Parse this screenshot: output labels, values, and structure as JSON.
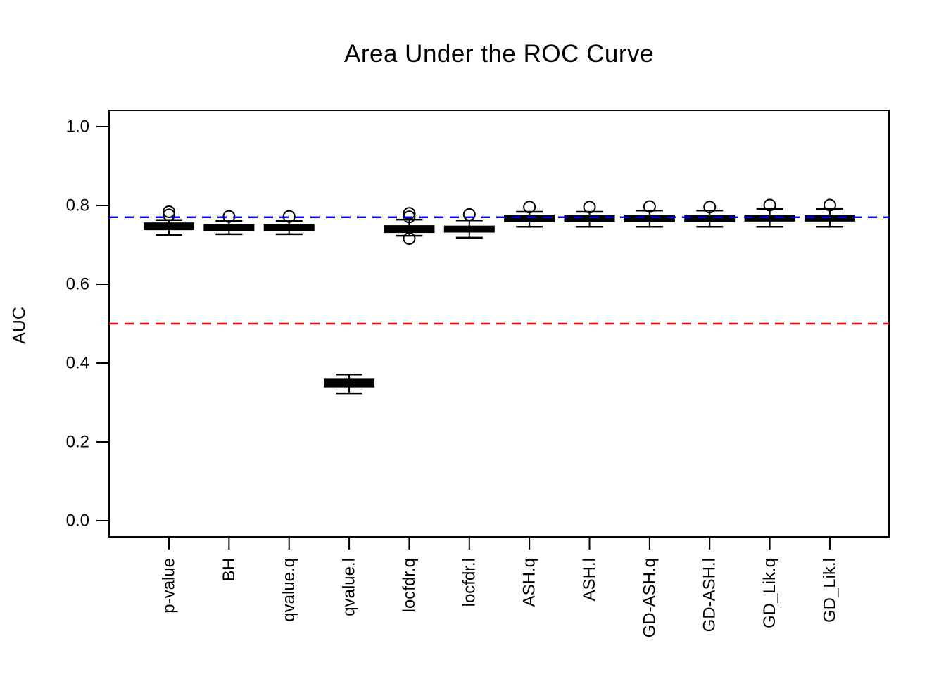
{
  "figure": {
    "background": "#ffffff",
    "axis_color": "#000000",
    "box_color": "#000000"
  },
  "chart_data": {
    "type": "boxplot",
    "title": "Area Under the ROC Curve",
    "xlabel": "",
    "ylabel": "AUC",
    "ylim": [
      -0.04,
      1.04
    ],
    "grid": false,
    "legend": null,
    "yticks": [
      {
        "value": 0.0,
        "label": "0.0"
      },
      {
        "value": 0.2,
        "label": "0.2"
      },
      {
        "value": 0.4,
        "label": "0.4"
      },
      {
        "value": 0.6,
        "label": "0.6"
      },
      {
        "value": 0.8,
        "label": "0.8"
      },
      {
        "value": 1.0,
        "label": "1.0"
      }
    ],
    "categories": [
      "p-value",
      "BH",
      "qvalue.q",
      "qvalue.l",
      "locfdr.q",
      "locfdr.l",
      "ASH.q",
      "ASH.l",
      "GD-ASH.q",
      "GD-ASH.l",
      "GD_Lik.q",
      "GD_Lik.l"
    ],
    "boxes": [
      {
        "category": "p-value",
        "whisker_low": 0.725,
        "q1": 0.739,
        "median": 0.747,
        "q3": 0.755,
        "whisker_high": 0.763,
        "outliers": [
          0.784,
          0.776
        ]
      },
      {
        "category": "BH",
        "whisker_low": 0.727,
        "q1": 0.737,
        "median": 0.744,
        "q3": 0.751,
        "whisker_high": 0.761,
        "outliers": [
          0.772
        ]
      },
      {
        "category": "qvalue.q",
        "whisker_low": 0.727,
        "q1": 0.737,
        "median": 0.744,
        "q3": 0.751,
        "whisker_high": 0.761,
        "outliers": [
          0.772
        ]
      },
      {
        "category": "qvalue.l",
        "whisker_low": 0.323,
        "q1": 0.34,
        "median": 0.35,
        "q3": 0.36,
        "whisker_high": 0.371,
        "outliers": []
      },
      {
        "category": "locfdr.q",
        "whisker_low": 0.723,
        "q1": 0.732,
        "median": 0.74,
        "q3": 0.748,
        "whisker_high": 0.764,
        "outliers": [
          0.78,
          0.771,
          0.716
        ]
      },
      {
        "category": "locfdr.l",
        "whisker_low": 0.718,
        "q1": 0.733,
        "median": 0.74,
        "q3": 0.747,
        "whisker_high": 0.762,
        "outliers": [
          0.777
        ]
      },
      {
        "category": "ASH.q",
        "whisker_low": 0.746,
        "q1": 0.759,
        "median": 0.767,
        "q3": 0.775,
        "whisker_high": 0.784,
        "outliers": [
          0.796
        ]
      },
      {
        "category": "ASH.l",
        "whisker_low": 0.746,
        "q1": 0.759,
        "median": 0.767,
        "q3": 0.775,
        "whisker_high": 0.784,
        "outliers": [
          0.796
        ]
      },
      {
        "category": "GD-ASH.q",
        "whisker_low": 0.746,
        "q1": 0.759,
        "median": 0.767,
        "q3": 0.775,
        "whisker_high": 0.787,
        "outliers": [
          0.797
        ]
      },
      {
        "category": "GD-ASH.l",
        "whisker_low": 0.746,
        "q1": 0.759,
        "median": 0.767,
        "q3": 0.775,
        "whisker_high": 0.787,
        "outliers": [
          0.796
        ]
      },
      {
        "category": "GD_Lik.q",
        "whisker_low": 0.746,
        "q1": 0.761,
        "median": 0.768,
        "q3": 0.775,
        "whisker_high": 0.791,
        "outliers": [
          0.801
        ]
      },
      {
        "category": "GD_Lik.l",
        "whisker_low": 0.746,
        "q1": 0.761,
        "median": 0.768,
        "q3": 0.775,
        "whisker_high": 0.791,
        "outliers": [
          0.801
        ]
      }
    ],
    "reference_lines": [
      {
        "name": "blue-reference-line",
        "value": 0.77,
        "color": "#0000ff",
        "style": "dashed"
      },
      {
        "name": "red-reference-line",
        "value": 0.5,
        "color": "#ff0000",
        "style": "dashed"
      }
    ]
  }
}
